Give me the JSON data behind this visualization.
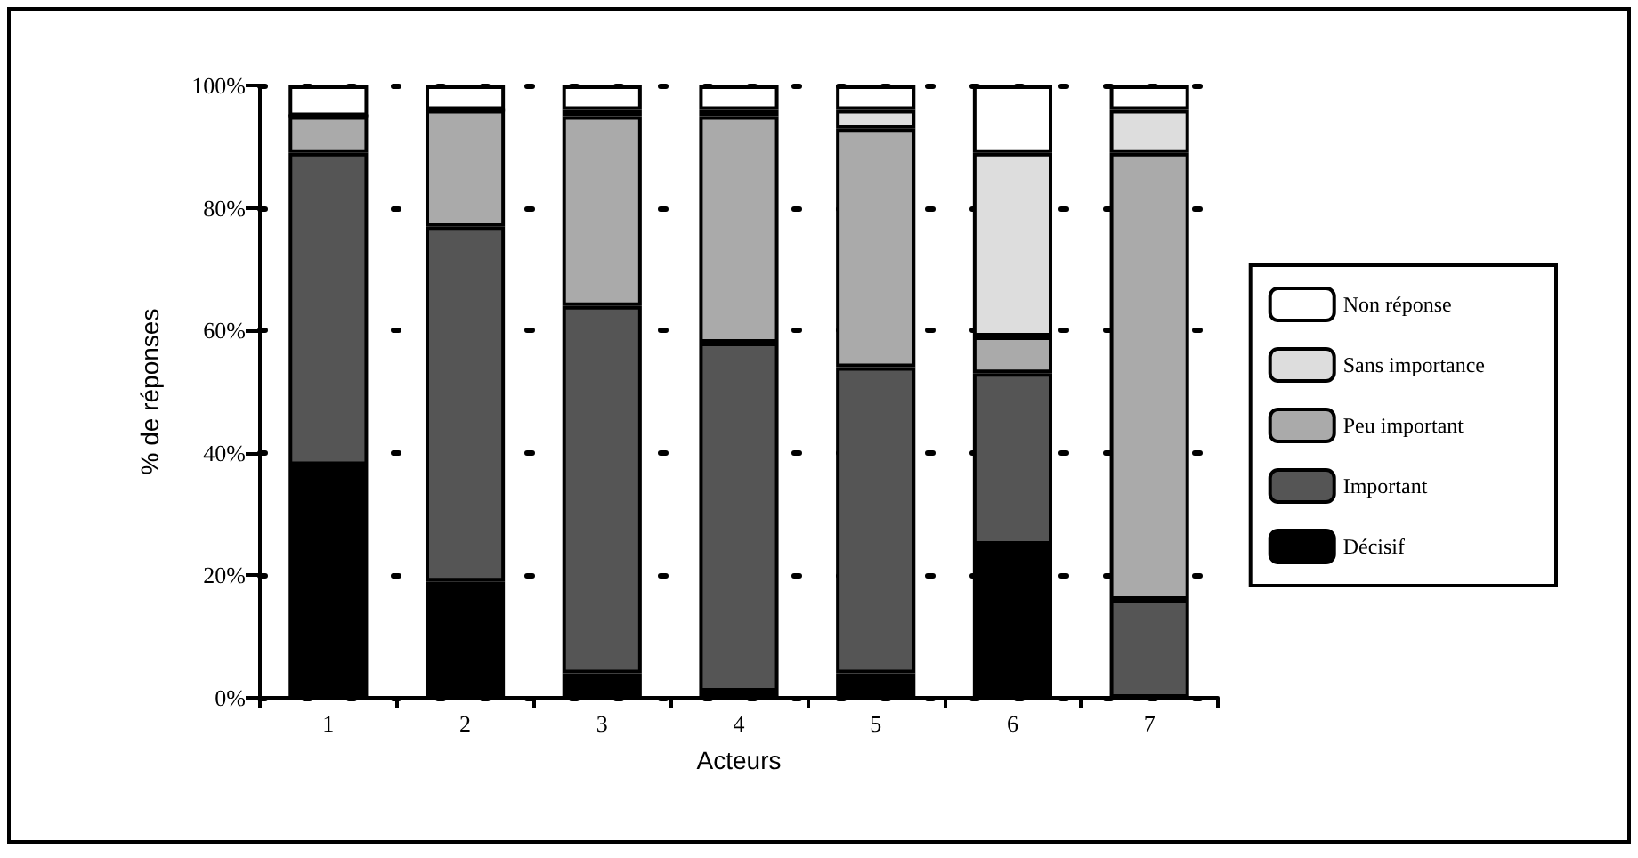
{
  "chart_data": {
    "type": "bar",
    "stacked": true,
    "xlabel": "Acteurs",
    "ylabel": "% de réponses",
    "categories": [
      "1",
      "2",
      "3",
      "4",
      "5",
      "6",
      "7"
    ],
    "series": [
      {
        "name": "Décisif",
        "color": "#000000",
        "values": [
          38,
          19,
          4,
          1,
          4,
          25,
          0
        ]
      },
      {
        "name": "Important",
        "color": "#555555",
        "values": [
          51,
          58,
          60,
          57,
          50,
          28,
          16
        ]
      },
      {
        "name": "Peu important",
        "color": "#aaaaaa",
        "values": [
          6,
          19,
          31,
          37,
          39,
          6,
          73
        ]
      },
      {
        "name": "Sans importance",
        "color": "#dddddd",
        "values": [
          0,
          0,
          1,
          1,
          3,
          30,
          7
        ]
      },
      {
        "name": "Non réponse",
        "color": "#ffffff",
        "values": [
          5,
          4,
          4,
          4,
          4,
          11,
          4
        ]
      }
    ],
    "ylim": [
      0,
      100
    ],
    "yticks": [
      {
        "value": 0,
        "label": "0%"
      },
      {
        "value": 20,
        "label": "20%"
      },
      {
        "value": 40,
        "label": "40%"
      },
      {
        "value": 60,
        "label": "60%"
      },
      {
        "value": 80,
        "label": "80%"
      },
      {
        "value": 100,
        "label": "100%"
      }
    ],
    "grid": "y",
    "legend": "right"
  }
}
